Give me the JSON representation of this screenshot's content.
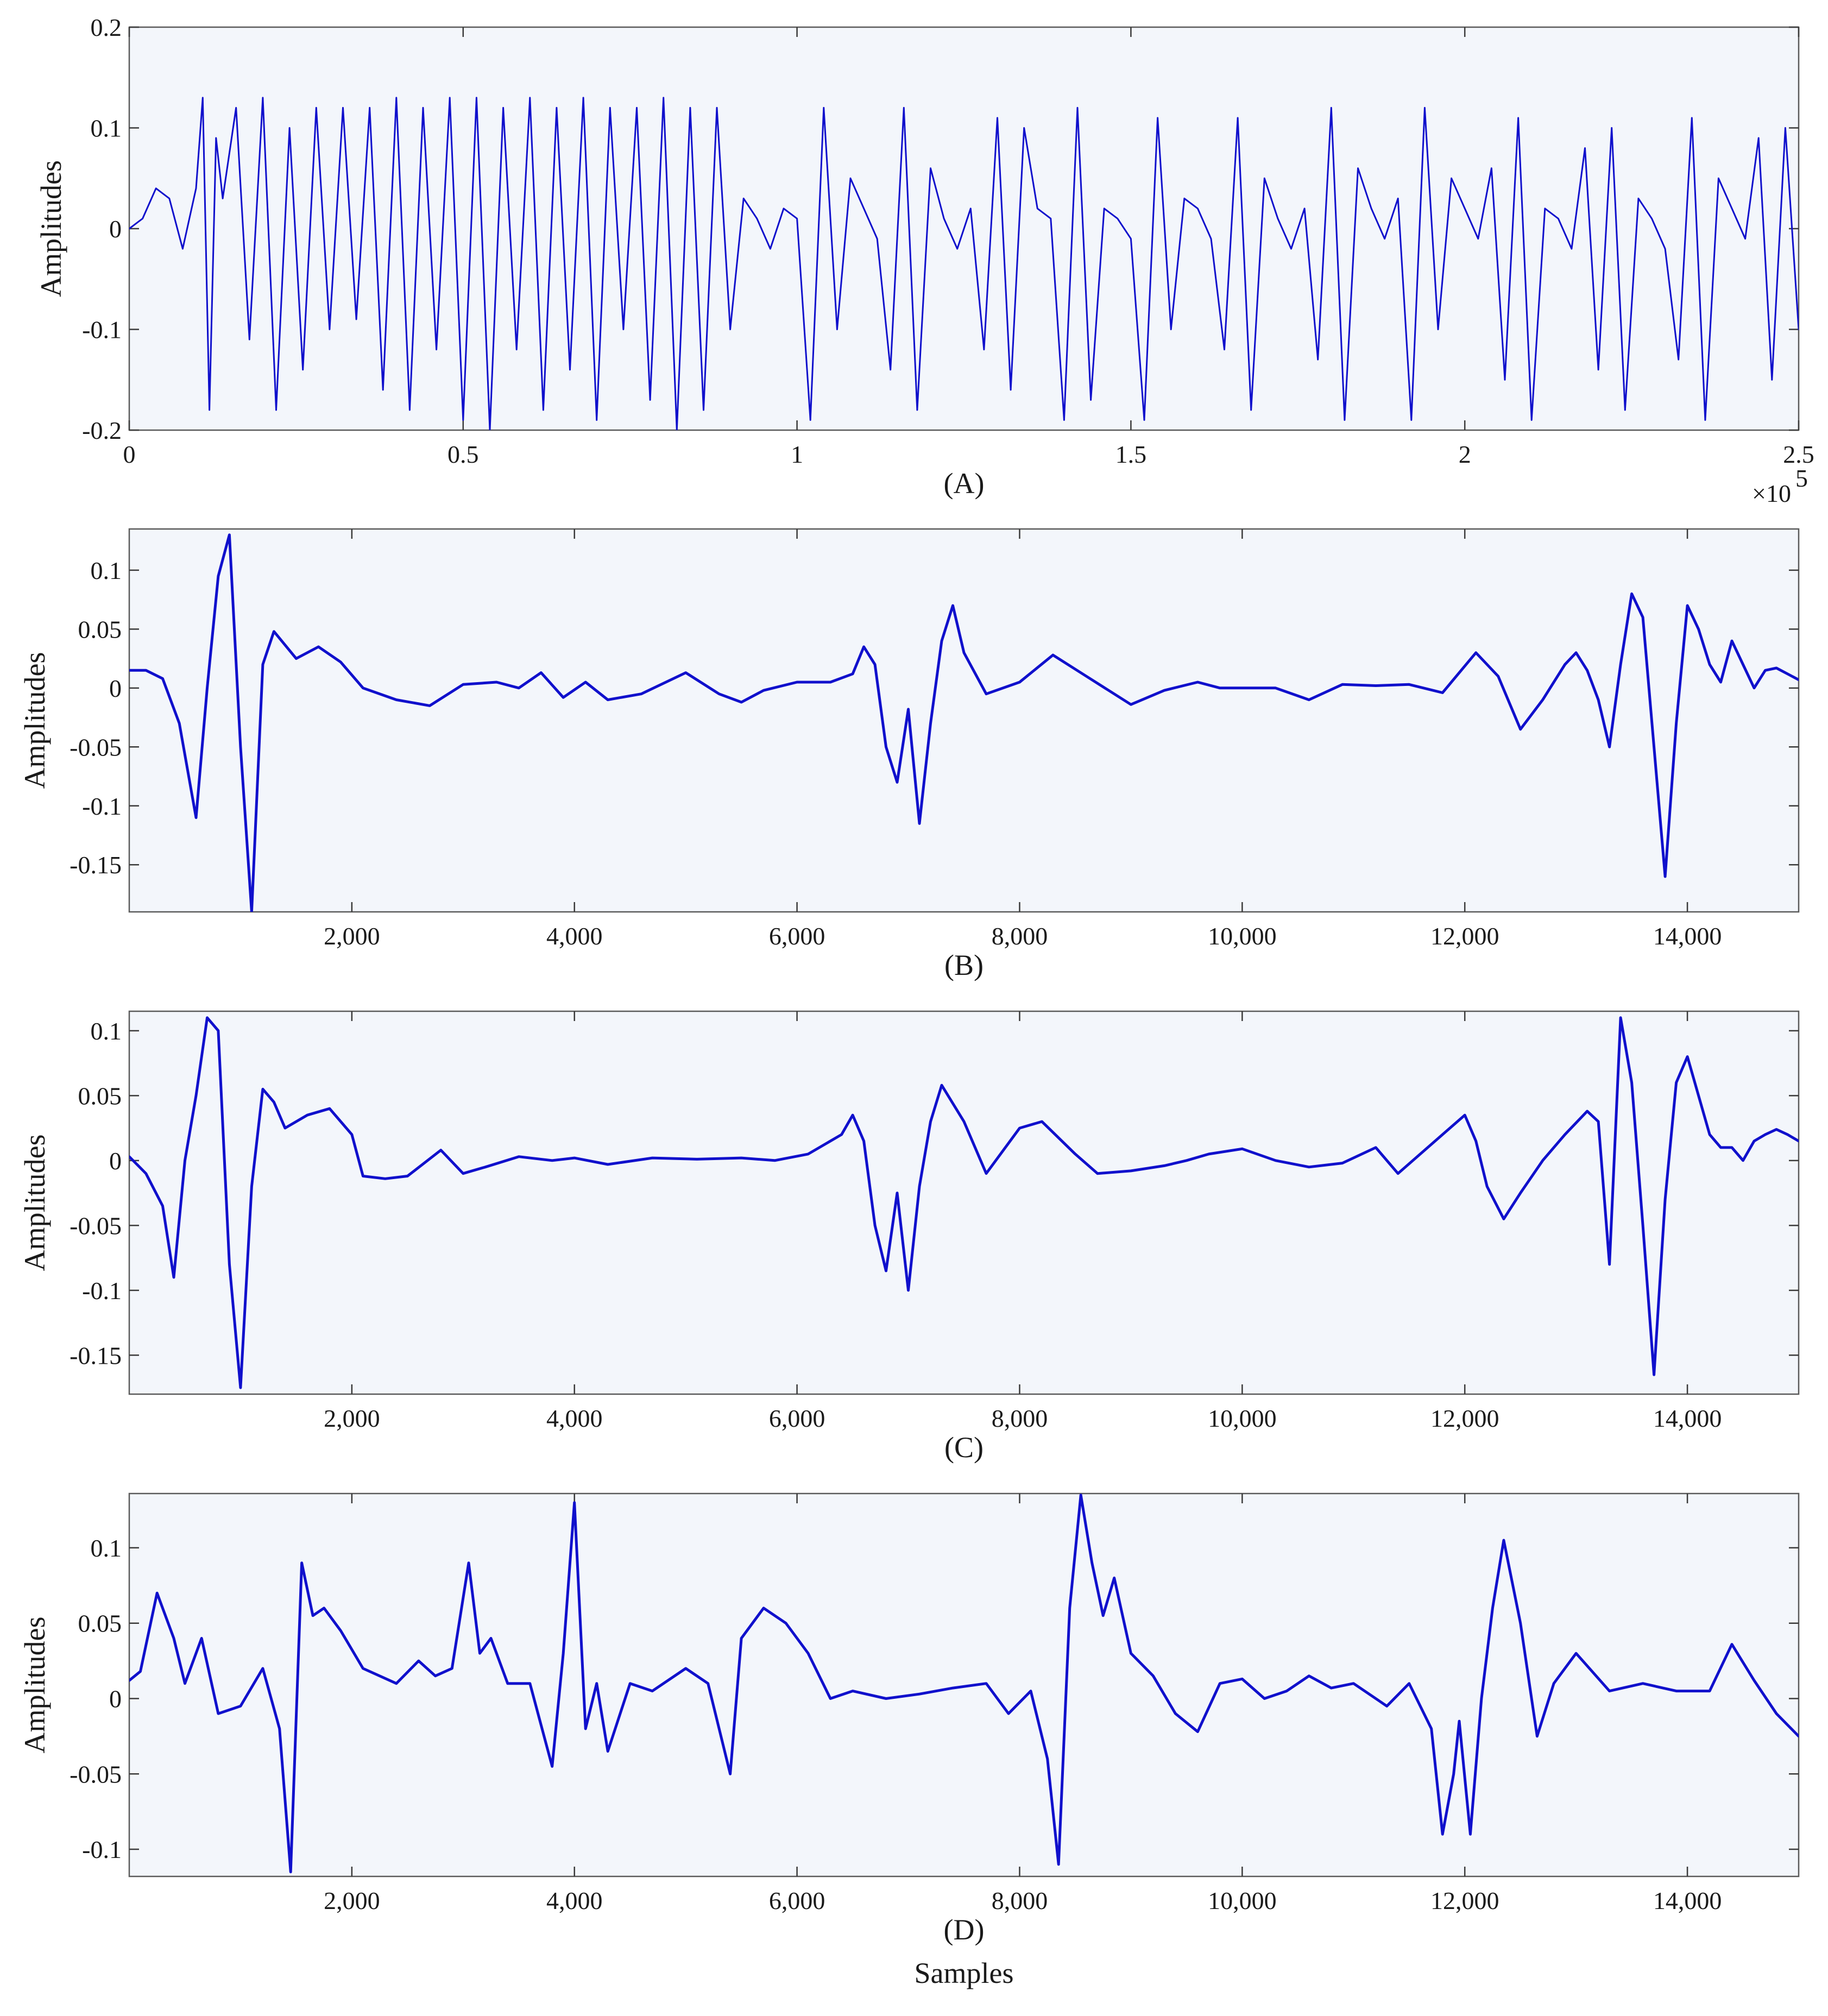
{
  "chart_data": [
    {
      "type": "line",
      "label": "(A)",
      "ylabel": "Amplitudes",
      "xlabel": "",
      "xlim": [
        0,
        250000
      ],
      "ylim": [
        -0.2,
        0.2
      ],
      "x_tick_labels": [
        "0",
        "0.5",
        "1",
        "1.5",
        "2",
        "2.5"
      ],
      "x_tick_values": [
        0,
        50000,
        100000,
        150000,
        200000,
        250000
      ],
      "x_exponent_base": "×10",
      "x_exponent_power": "5",
      "y_tick_labels": [
        "0.2",
        "0.1",
        "0",
        "-0.1",
        "-0.2"
      ],
      "y_tick_values": [
        0.2,
        0.1,
        0,
        -0.1,
        -0.2
      ],
      "color": "#1010cc",
      "x": [
        0,
        2000,
        4000,
        6000,
        8000,
        10000,
        11000,
        12000,
        13000,
        14000,
        16000,
        18000,
        20000,
        22000,
        24000,
        26000,
        28000,
        30000,
        32000,
        34000,
        36000,
        38000,
        40000,
        42000,
        44000,
        46000,
        48000,
        50000,
        52000,
        54000,
        56000,
        58000,
        60000,
        62000,
        64000,
        66000,
        68000,
        70000,
        72000,
        74000,
        76000,
        78000,
        80000,
        82000,
        84000,
        86000,
        88000,
        90000,
        92000,
        94000,
        96000,
        98000,
        100000,
        102000,
        104000,
        106000,
        108000,
        110000,
        112000,
        114000,
        116000,
        118000,
        120000,
        122000,
        124000,
        126000,
        128000,
        130000,
        132000,
        134000,
        136000,
        138000,
        140000,
        142000,
        144000,
        146000,
        148000,
        150000,
        152000,
        154000,
        156000,
        158000,
        160000,
        162000,
        164000,
        166000,
        168000,
        170000,
        172000,
        174000,
        176000,
        178000,
        180000,
        182000,
        184000,
        186000,
        188000,
        190000,
        192000,
        194000,
        196000,
        198000,
        200000,
        202000,
        204000,
        206000,
        208000,
        210000,
        212000,
        214000,
        216000,
        218000,
        220000,
        222000,
        224000,
        226000,
        228000,
        230000,
        232000,
        234000,
        236000,
        238000,
        240000,
        242000,
        244000,
        246000,
        248000,
        250000
      ],
      "y": [
        0,
        0.01,
        0.04,
        0.03,
        -0.02,
        0.04,
        0.13,
        -0.18,
        0.09,
        0.03,
        0.12,
        -0.11,
        0.13,
        -0.18,
        0.1,
        -0.14,
        0.12,
        -0.1,
        0.12,
        -0.09,
        0.12,
        -0.16,
        0.13,
        -0.18,
        0.12,
        -0.12,
        0.13,
        -0.19,
        0.13,
        -0.2,
        0.12,
        -0.12,
        0.13,
        -0.18,
        0.12,
        -0.14,
        0.13,
        -0.19,
        0.12,
        -0.1,
        0.12,
        -0.17,
        0.13,
        -0.2,
        0.12,
        -0.18,
        0.12,
        -0.1,
        0.03,
        0.01,
        -0.02,
        0.02,
        0.01,
        -0.19,
        0.12,
        -0.1,
        0.05,
        0.02,
        -0.01,
        -0.14,
        0.12,
        -0.18,
        0.06,
        0.01,
        -0.02,
        0.02,
        -0.12,
        0.11,
        -0.16,
        0.1,
        0.02,
        0.01,
        -0.19,
        0.12,
        -0.17,
        0.02,
        0.01,
        -0.01,
        -0.19,
        0.11,
        -0.1,
        0.03,
        0.02,
        -0.01,
        -0.12,
        0.11,
        -0.18,
        0.05,
        0.01,
        -0.02,
        0.02,
        -0.13,
        0.12,
        -0.19,
        0.06,
        0.02,
        -0.01,
        0.03,
        -0.19,
        0.12,
        -0.1,
        0.05,
        0.02,
        -0.01,
        0.06,
        -0.15,
        0.11,
        -0.19,
        0.02,
        0.01,
        -0.02,
        0.08,
        -0.14,
        0.1,
        -0.18,
        0.03,
        0.01,
        -0.02,
        -0.13,
        0.11,
        -0.19,
        0.05,
        0.02,
        -0.01,
        0.09,
        -0.15,
        0.1,
        -0.1
      ]
    },
    {
      "type": "line",
      "label": "(B)",
      "ylabel": "Amplitudes",
      "xlabel": "",
      "xlim": [
        0,
        15000
      ],
      "ylim": [
        -0.19,
        0.135
      ],
      "x_tick_labels": [
        "2,000",
        "4,000",
        "6,000",
        "8,000",
        "10,000",
        "12,000",
        "14,000"
      ],
      "x_tick_values": [
        2000,
        4000,
        6000,
        8000,
        10000,
        12000,
        14000
      ],
      "y_tick_labels": [
        "0.1",
        "0.05",
        "0",
        "-0.05",
        "-0.1",
        "-0.15"
      ],
      "y_tick_values": [
        0.1,
        0.05,
        0,
        -0.05,
        -0.1,
        -0.15
      ],
      "color": "#1010cc",
      "x": [
        0,
        150,
        300,
        450,
        600,
        700,
        800,
        900,
        1000,
        1100,
        1200,
        1300,
        1500,
        1700,
        1900,
        2100,
        2400,
        2700,
        3000,
        3300,
        3500,
        3700,
        3900,
        4100,
        4300,
        4600,
        5000,
        5300,
        5500,
        5700,
        6000,
        6300,
        6500,
        6600,
        6700,
        6800,
        6900,
        7000,
        7100,
        7200,
        7300,
        7400,
        7500,
        7700,
        8000,
        8300,
        8600,
        8800,
        9000,
        9300,
        9600,
        9800,
        10000,
        10300,
        10600,
        10900,
        11200,
        11500,
        11800,
        12100,
        12300,
        12500,
        12700,
        12900,
        13000,
        13100,
        13200,
        13300,
        13400,
        13500,
        13600,
        13700,
        13800,
        13900,
        14000,
        14100,
        14200,
        14300,
        14400,
        14500,
        14600,
        14700,
        14800,
        14900,
        15000
      ],
      "y": [
        0.015,
        0.015,
        0.008,
        -0.03,
        -0.11,
        0.0,
        0.095,
        0.13,
        -0.05,
        -0.19,
        0.02,
        0.048,
        0.025,
        0.035,
        0.022,
        0.0,
        -0.01,
        -0.015,
        0.003,
        0.005,
        0.0,
        0.013,
        -0.008,
        0.005,
        -0.01,
        -0.005,
        0.013,
        -0.005,
        -0.012,
        -0.002,
        0.005,
        0.005,
        0.012,
        0.035,
        0.02,
        -0.05,
        -0.08,
        -0.018,
        -0.115,
        -0.03,
        0.04,
        0.07,
        0.03,
        -0.005,
        0.005,
        0.028,
        0.01,
        -0.002,
        -0.014,
        -0.002,
        0.005,
        0.0,
        0.0,
        0.0,
        -0.01,
        0.003,
        0.002,
        0.003,
        -0.004,
        0.03,
        0.01,
        -0.035,
        -0.01,
        0.02,
        0.03,
        0.015,
        -0.01,
        -0.05,
        0.02,
        0.08,
        0.06,
        -0.05,
        -0.16,
        -0.03,
        0.07,
        0.05,
        0.02,
        0.005,
        0.04,
        0.02,
        0.0,
        0.015,
        0.017,
        0.012,
        0.007
      ]
    },
    {
      "type": "line",
      "label": "(C)",
      "ylabel": "Amplitudes",
      "xlabel": "",
      "xlim": [
        0,
        15000
      ],
      "ylim": [
        -0.18,
        0.115
      ],
      "x_tick_labels": [
        "2,000",
        "4,000",
        "6,000",
        "8,000",
        "10,000",
        "12,000",
        "14,000"
      ],
      "x_tick_values": [
        2000,
        4000,
        6000,
        8000,
        10000,
        12000,
        14000
      ],
      "y_tick_labels": [
        "0.1",
        "0.05",
        "0",
        "-0.05",
        "-0.1",
        "-0.15"
      ],
      "y_tick_values": [
        0.1,
        0.05,
        0,
        -0.05,
        -0.1,
        -0.15
      ],
      "color": "#1010cc",
      "x": [
        0,
        150,
        300,
        400,
        500,
        600,
        700,
        800,
        900,
        1000,
        1100,
        1200,
        1300,
        1400,
        1600,
        1800,
        2000,
        2100,
        2300,
        2500,
        2800,
        3000,
        3200,
        3500,
        3800,
        4000,
        4300,
        4700,
        5100,
        5500,
        5800,
        6100,
        6400,
        6500,
        6600,
        6700,
        6800,
        6900,
        7000,
        7100,
        7200,
        7300,
        7500,
        7700,
        8000,
        8200,
        8500,
        8700,
        9000,
        9300,
        9500,
        9700,
        10000,
        10300,
        10600,
        10900,
        11200,
        11400,
        11600,
        11800,
        12000,
        12100,
        12200,
        12350,
        12500,
        12700,
        12900,
        13100,
        13200,
        13300,
        13400,
        13500,
        13600,
        13700,
        13800,
        13900,
        14000,
        14100,
        14200,
        14300,
        14400,
        14500,
        14600,
        14700,
        14800,
        14900,
        15000
      ],
      "y": [
        0.003,
        -0.01,
        -0.035,
        -0.09,
        0.0,
        0.05,
        0.11,
        0.1,
        -0.08,
        -0.175,
        -0.02,
        0.055,
        0.045,
        0.025,
        0.035,
        0.04,
        0.02,
        -0.012,
        -0.014,
        -0.012,
        0.008,
        -0.01,
        -0.005,
        0.003,
        0.0,
        0.002,
        -0.003,
        0.002,
        0.001,
        0.002,
        0.0,
        0.005,
        0.02,
        0.035,
        0.015,
        -0.05,
        -0.085,
        -0.025,
        -0.1,
        -0.02,
        0.03,
        0.058,
        0.03,
        -0.01,
        0.025,
        0.03,
        0.005,
        -0.01,
        -0.008,
        -0.004,
        0.0,
        0.005,
        0.009,
        0.0,
        -0.005,
        -0.002,
        0.01,
        -0.01,
        0.005,
        0.02,
        0.035,
        0.015,
        -0.02,
        -0.045,
        -0.025,
        0.0,
        0.02,
        0.038,
        0.03,
        -0.08,
        0.11,
        0.06,
        -0.05,
        -0.165,
        -0.03,
        0.06,
        0.08,
        0.05,
        0.02,
        0.01,
        0.01,
        0.0,
        0.015,
        0.02,
        0.024,
        0.02,
        0.015
      ]
    },
    {
      "type": "line",
      "label": "(D)",
      "ylabel": "Amplitudes",
      "xlabel": "Samples",
      "xlim": [
        0,
        15000
      ],
      "ylim": [
        -0.118,
        0.136
      ],
      "x_tick_labels": [
        "2,000",
        "4,000",
        "6,000",
        "8,000",
        "10,000",
        "12,000",
        "14,000"
      ],
      "x_tick_values": [
        2000,
        4000,
        6000,
        8000,
        10000,
        12000,
        14000
      ],
      "y_tick_labels": [
        "0.1",
        "0.05",
        "0",
        "-0.05",
        "-0.1"
      ],
      "y_tick_values": [
        0.1,
        0.05,
        0,
        -0.05,
        -0.1
      ],
      "color": "#1010cc",
      "x": [
        0,
        100,
        250,
        400,
        500,
        650,
        800,
        1000,
        1200,
        1350,
        1450,
        1550,
        1650,
        1750,
        1900,
        2100,
        2400,
        2600,
        2750,
        2900,
        3050,
        3150,
        3250,
        3400,
        3600,
        3800,
        3900,
        4000,
        4100,
        4200,
        4300,
        4500,
        4700,
        5000,
        5200,
        5400,
        5500,
        5700,
        5900,
        6100,
        6300,
        6500,
        6800,
        7100,
        7400,
        7700,
        7900,
        8100,
        8250,
        8350,
        8450,
        8550,
        8650,
        8750,
        8850,
        9000,
        9200,
        9400,
        9600,
        9800,
        10000,
        10200,
        10400,
        10600,
        10800,
        11000,
        11300,
        11500,
        11700,
        11800,
        11900,
        11950,
        12050,
        12150,
        12250,
        12350,
        12500,
        12650,
        12800,
        13000,
        13300,
        13600,
        13900,
        14200,
        14400,
        14600,
        14800,
        15000
      ],
      "y": [
        0.012,
        0.018,
        0.07,
        0.04,
        0.01,
        0.04,
        -0.01,
        -0.005,
        0.02,
        -0.02,
        -0.115,
        0.09,
        0.055,
        0.06,
        0.045,
        0.02,
        0.01,
        0.025,
        0.015,
        0.02,
        0.09,
        0.03,
        0.04,
        0.01,
        0.01,
        -0.045,
        0.03,
        0.13,
        -0.02,
        0.01,
        -0.035,
        0.01,
        0.005,
        0.02,
        0.01,
        -0.05,
        0.04,
        0.06,
        0.05,
        0.03,
        0.0,
        0.005,
        0.0,
        0.003,
        0.007,
        0.01,
        -0.01,
        0.005,
        -0.04,
        -0.11,
        0.06,
        0.135,
        0.09,
        0.055,
        0.08,
        0.03,
        0.015,
        -0.01,
        -0.022,
        0.01,
        0.013,
        0.0,
        0.005,
        0.015,
        0.007,
        0.01,
        -0.005,
        0.01,
        -0.02,
        -0.09,
        -0.05,
        -0.015,
        -0.09,
        0.0,
        0.06,
        0.105,
        0.05,
        -0.025,
        0.01,
        0.03,
        0.005,
        0.01,
        0.005,
        0.005,
        0.036,
        0.012,
        -0.01,
        -0.025
      ]
    }
  ]
}
